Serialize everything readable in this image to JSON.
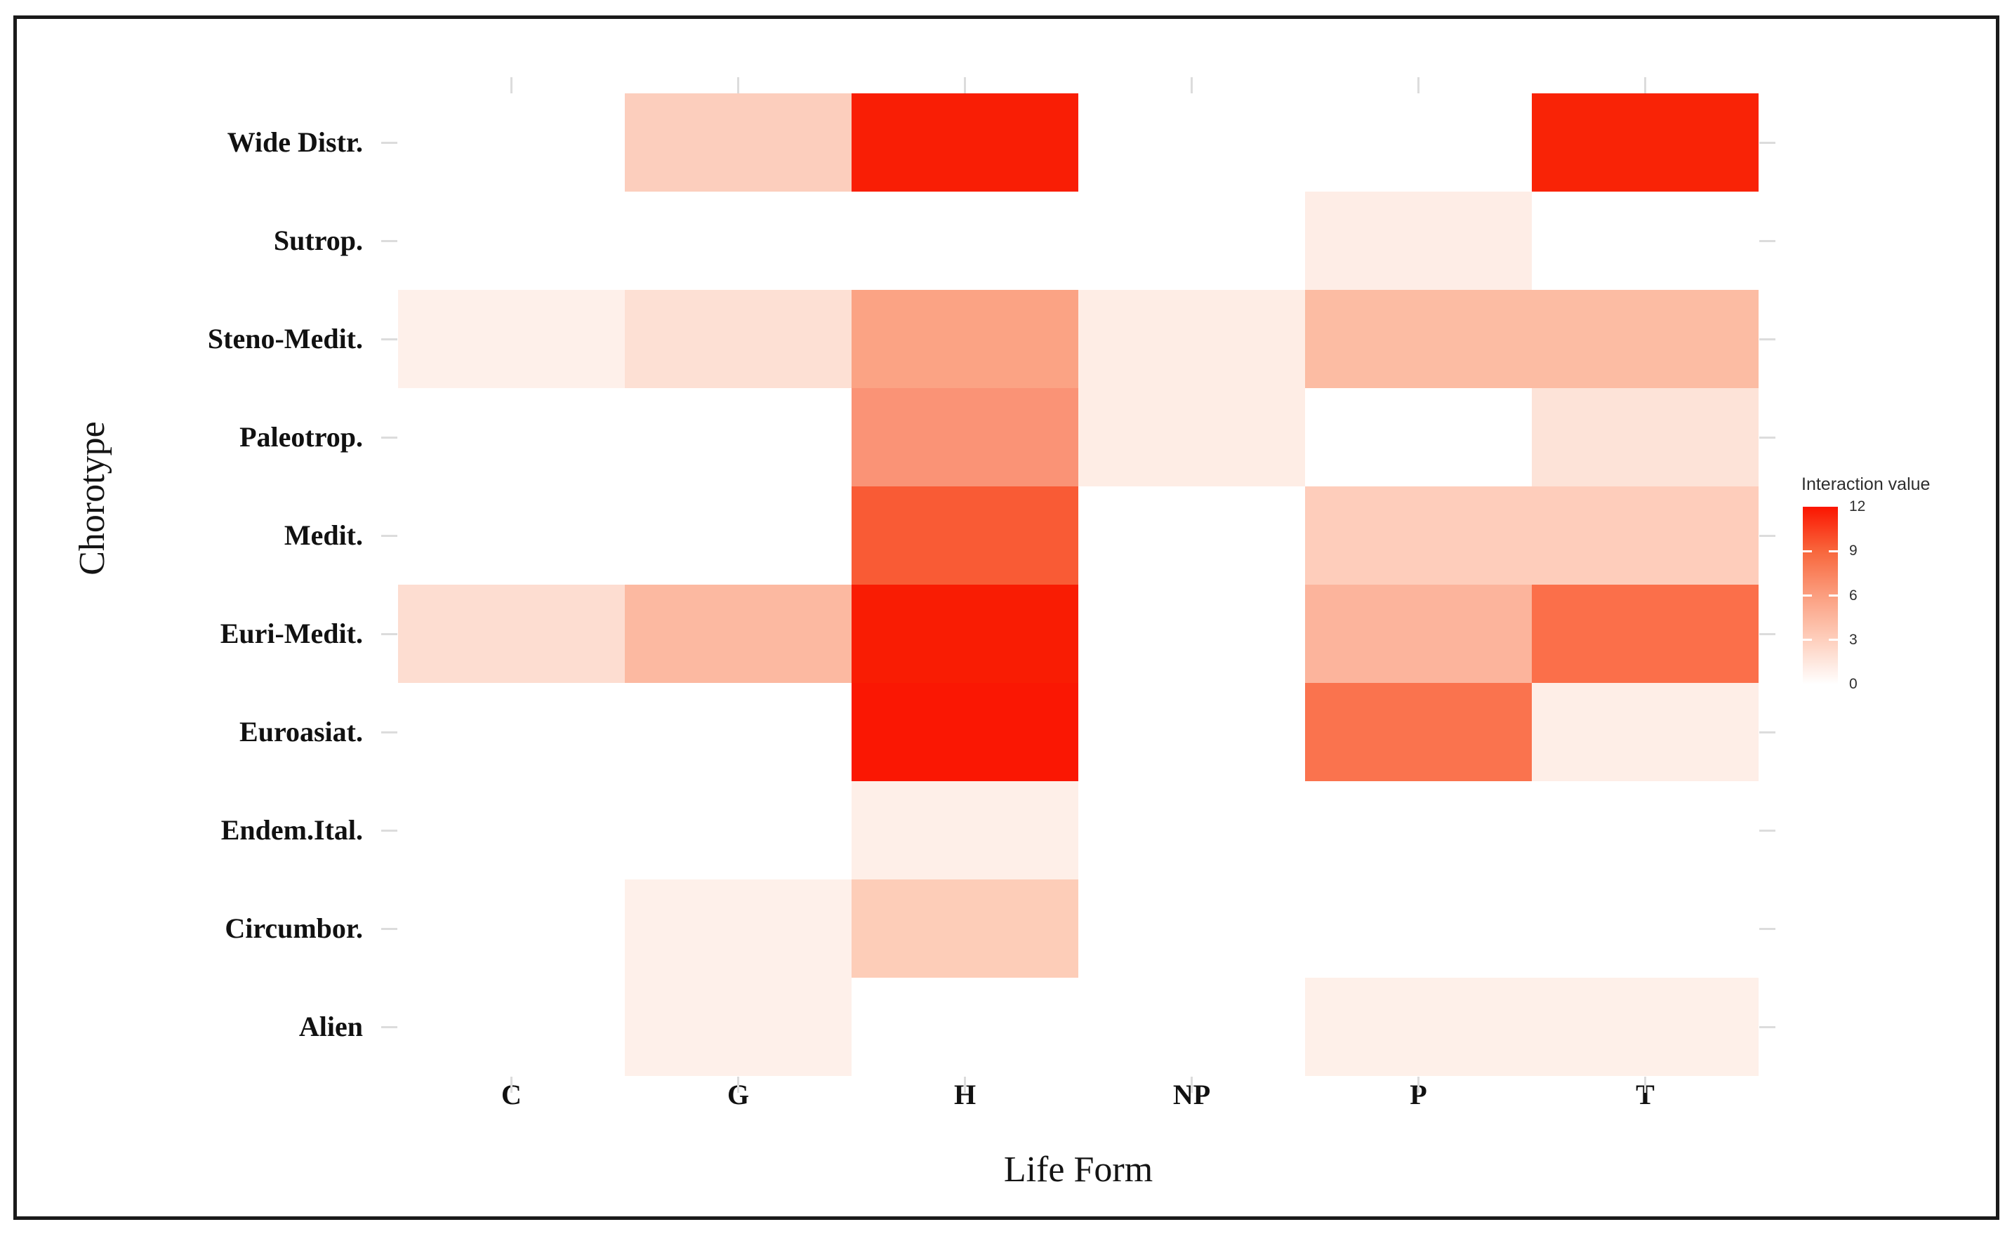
{
  "figure": {
    "background": "#ffffff",
    "border_color": "#1a1a1a"
  },
  "chart_data": {
    "type": "heatmap",
    "title": "",
    "xlabel": "Life Form",
    "ylabel": "Chorotype",
    "x_categories": [
      "C",
      "G",
      "H",
      "NP",
      "P",
      "T"
    ],
    "y_categories": [
      "Wide Distr.",
      "Sutrop.",
      "Steno-Medit.",
      "Paleotrop.",
      "Medit.",
      "Euri-Medit.",
      "Euroasiat.",
      "Endem.Ital.",
      "Circumbor.",
      "Alien"
    ],
    "values": [
      [
        0,
        3,
        12,
        0,
        0,
        12
      ],
      [
        0,
        0,
        0,
        0,
        1,
        0
      ],
      [
        1,
        2,
        6,
        1,
        4,
        4
      ],
      [
        0,
        0,
        7,
        1,
        0,
        2
      ],
      [
        0,
        0,
        9,
        0,
        3,
        3
      ],
      [
        2,
        5,
        12,
        0,
        5,
        8
      ],
      [
        0,
        0,
        12,
        0,
        8,
        1
      ],
      [
        0,
        0,
        1,
        0,
        0,
        0
      ],
      [
        0,
        1,
        3,
        0,
        0,
        0
      ],
      [
        0,
        1,
        0,
        0,
        1,
        1
      ]
    ],
    "cell_colors": [
      [
        "#FFFFFF",
        "#FCCEBD",
        "#F91E05",
        "#FFFFFF",
        "#FFFFFF",
        "#F92306"
      ],
      [
        "#FFFFFF",
        "#FFFFFF",
        "#FFFFFF",
        "#FFFFFF",
        "#FEEDE6",
        "#FFFFFF"
      ],
      [
        "#FEF0EA",
        "#FDE0D4",
        "#FBA384",
        "#FEEDE5",
        "#FCBCA3",
        "#FCBCA3"
      ],
      [
        "#FFFFFF",
        "#FFFFFF",
        "#FA9376",
        "#FEEDE5",
        "#FFFFFF",
        "#FDE3D8"
      ],
      [
        "#FFFFFF",
        "#FFFFFF",
        "#F95B35",
        "#FFFFFF",
        "#FECDBB",
        "#FECDBB"
      ],
      [
        "#FDDDD1",
        "#FCB9A1",
        "#F91C03",
        "#FFFFFF",
        "#FCB49C",
        "#FB6F4A"
      ],
      [
        "#FFFFFF",
        "#FFFFFF",
        "#FA1703",
        "#FFFFFF",
        "#FA734E",
        "#FEEEE7"
      ],
      [
        "#FFFFFF",
        "#FFFFFF",
        "#FEEFE8",
        "#FFFFFF",
        "#FFFFFF",
        "#FFFFFF"
      ],
      [
        "#FFFFFF",
        "#FEF0EA",
        "#FDCDB8",
        "#FFFFFF",
        "#FFFFFF",
        "#FFFFFF"
      ],
      [
        "#FFFFFF",
        "#FEF0EA",
        "#FFFFFF",
        "#FFFFFF",
        "#FEF0E9",
        "#FEF0E9"
      ]
    ],
    "grid": false,
    "legend_position": "right",
    "legend": {
      "title": "Interaction value",
      "min": 0,
      "max": 12,
      "ticks": [
        12,
        9,
        6,
        3,
        0
      ],
      "gradient_low": "#FFFFFF",
      "gradient_high": "#FB1500",
      "gradient_stops": [
        "#FFFFFF",
        "#FECFBD",
        "#FB9E7F",
        "#F8663C",
        "#FB1500"
      ]
    }
  }
}
